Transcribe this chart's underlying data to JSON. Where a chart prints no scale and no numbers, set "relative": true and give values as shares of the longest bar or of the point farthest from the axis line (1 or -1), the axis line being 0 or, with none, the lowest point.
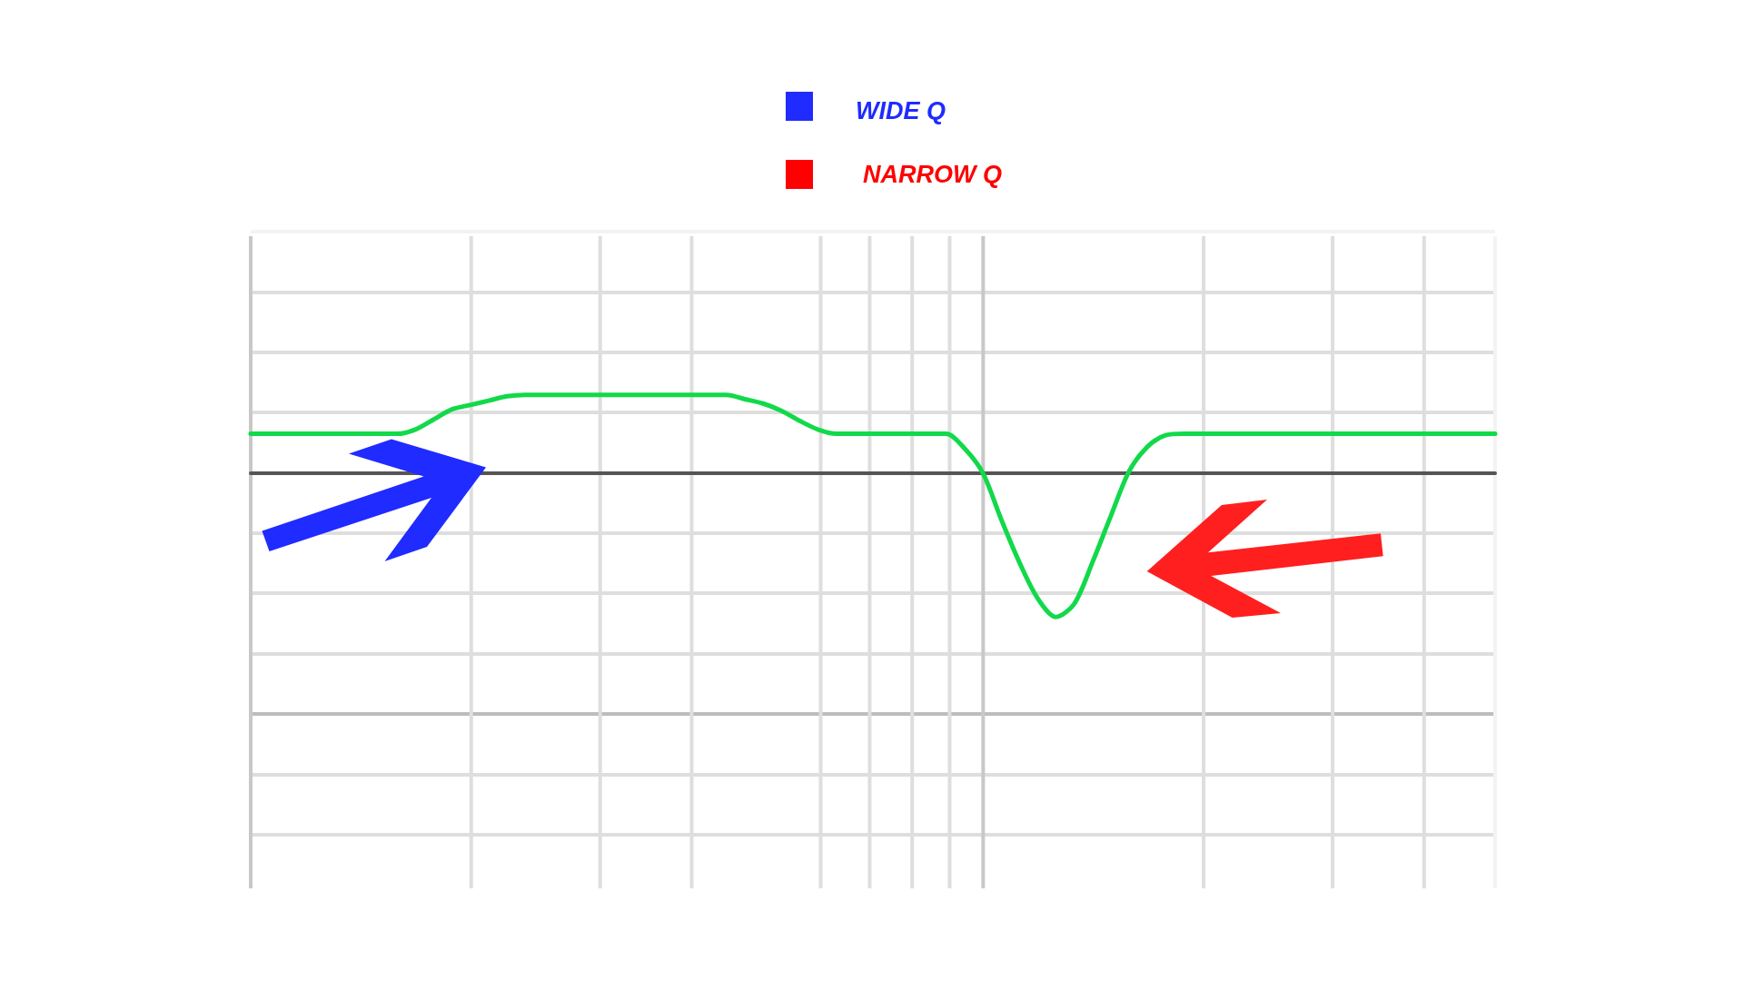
{
  "chart_data": {
    "type": "line",
    "relative": true,
    "categories": [
      null,
      null,
      null,
      null,
      null,
      null,
      null,
      null,
      null,
      null,
      null,
      null,
      null,
      null,
      null,
      null,
      null,
      null,
      null,
      null,
      null,
      null,
      null,
      null,
      null,
      null,
      null,
      null,
      null,
      null,
      null,
      null,
      null,
      null,
      null,
      null,
      null,
      null,
      null,
      null,
      null,
      null,
      null,
      null,
      null,
      null,
      null,
      null,
      null,
      null,
      null,
      null,
      null,
      null,
      null,
      null,
      null,
      null,
      null,
      null,
      null,
      null,
      null,
      null,
      null,
      null,
      null,
      null,
      null
    ],
    "values": [
      0.27,
      0.27,
      0.27,
      0.27,
      0.27,
      0.27,
      0.27,
      0.27,
      0.27,
      0.3,
      0.37,
      0.44,
      0.47,
      0.5,
      0.53,
      0.54,
      0.54,
      0.54,
      0.54,
      0.54,
      0.54,
      0.54,
      0.54,
      0.54,
      0.54,
      0.54,
      0.54,
      0.51,
      0.48,
      0.43,
      0.36,
      0.3,
      0.27,
      0.27,
      0.27,
      0.27,
      0.27,
      0.27,
      0.27,
      0.17,
      0.0,
      -0.32,
      -0.62,
      -0.87,
      -1,
      -0.91,
      -0.62,
      -0.3,
      0.01,
      0.18,
      0.26,
      0.27,
      0.27,
      0.27,
      0.27,
      0.27,
      0.27,
      0.27,
      0.27,
      0.27,
      0.27,
      0.27,
      0.27,
      0.27,
      0.27,
      0.27,
      0.27,
      0.27,
      0.27
    ],
    "color": "#12d94a",
    "marker": "none",
    "line_style": "solid",
    "grid": true,
    "annotations": [
      "WIDE Q",
      "NARROW Q"
    ]
  }
}
